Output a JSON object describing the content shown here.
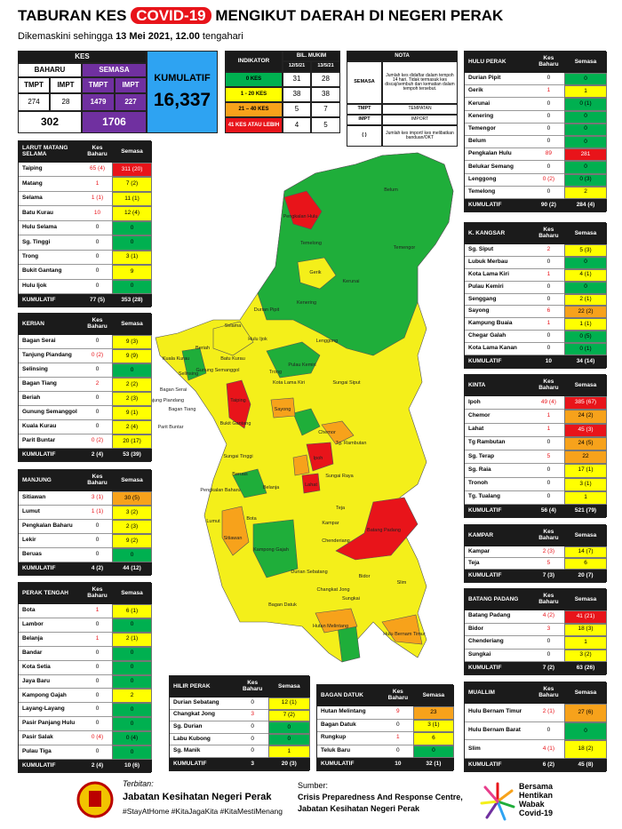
{
  "header": {
    "title_prefix": "TABURAN KES",
    "title_highlight": "COVID-19",
    "title_suffix": "MENGIKUT DAERAH DI NEGERI PERAK",
    "subtitle_prefix": "Dikemaskini sehingga",
    "subtitle_date": "13 Mei 2021, 12.00",
    "subtitle_suffix": "tengahari"
  },
  "summary": {
    "title": "KES",
    "baharu": "BAHARU",
    "semasa": "SEMASA",
    "cols": [
      "TMPT",
      "IMPT",
      "TMPT",
      "IMPT"
    ],
    "values": [
      274,
      28,
      1479,
      227
    ],
    "totals": [
      302,
      1706
    ],
    "kumulatif_label": "KUMULATIF",
    "kumulatif": "16,337"
  },
  "indicator": {
    "title": "INDIKATOR",
    "group": "BIL. MUKIM",
    "dates": [
      "12/5/21",
      "13/5/21"
    ],
    "rows": [
      [
        "0 KES",
        31,
        28,
        "green"
      ],
      [
        "1 - 20 KES",
        38,
        38,
        "yellow"
      ],
      [
        "21 – 40 KES",
        5,
        7,
        "orange"
      ],
      [
        "41 KES ATAU LEBIH",
        4,
        5,
        "red"
      ]
    ]
  },
  "nota": {
    "title": "NOTA",
    "rows": [
      [
        "SEMASA",
        "Jumlah kes didaftar dalam tempoh 14 hari. Tidak termasuk kes discaj/sembuh dan kematian dalam tempoh tersebut."
      ],
      [
        "TMPT",
        "TEMPATAN"
      ],
      [
        "IMPT",
        "IMPORT"
      ],
      [
        "( )",
        "Jumlah kes import/ kes melibatkan banduan/OKT"
      ]
    ]
  },
  "district_columns": [
    "Kes Baharu",
    "Semasa"
  ],
  "total_label": "KUMULATIF",
  "districts": [
    {
      "name": "LARUT MATANG SELAMA",
      "rows": [
        [
          "Taiping",
          "65 (4)",
          "311 (20)",
          "red"
        ],
        [
          "Matang",
          1,
          "7 (2)",
          "yellow"
        ],
        [
          "Selama",
          "1 (1)",
          "11 (1)",
          "yellow"
        ],
        [
          "Batu Kurau",
          10,
          "12 (4)",
          "yellow"
        ],
        [
          "Hulu Selama",
          0,
          0,
          "green"
        ],
        [
          "Sg. Tinggi",
          0,
          0,
          "green"
        ],
        [
          "Trong",
          0,
          "3 (1)",
          "yellow"
        ],
        [
          "Bukit Gantang",
          0,
          9,
          "yellow"
        ],
        [
          "Hulu Ijok",
          0,
          0,
          "green"
        ]
      ],
      "total": [
        "77 (5)",
        "353 (28)"
      ]
    },
    {
      "name": "KERIAN",
      "rows": [
        [
          "Bagan Serai",
          0,
          "9 (3)",
          "yellow"
        ],
        [
          "Tanjung Piandang",
          "0 (2)",
          "9 (9)",
          "yellow"
        ],
        [
          "Selinsing",
          0,
          0,
          "green"
        ],
        [
          "Bagan Tiang",
          2,
          "2 (2)",
          "yellow"
        ],
        [
          "Beriah",
          0,
          "2 (3)",
          "yellow"
        ],
        [
          "Gunung Semanggol",
          0,
          "9 (1)",
          "yellow"
        ],
        [
          "Kuala Kurau",
          0,
          "2 (4)",
          "yellow"
        ],
        [
          "Parit Buntar",
          "0 (2)",
          "20 (17)",
          "yellow"
        ]
      ],
      "total": [
        "2 (4)",
        "53 (39)"
      ]
    },
    {
      "name": "MANJUNG",
      "rows": [
        [
          "Sitiawan",
          "3 (1)",
          "30 (5)",
          "orange"
        ],
        [
          "Lumut",
          "1 (1)",
          "3 (2)",
          "yellow"
        ],
        [
          "Pengkalan Baharu",
          0,
          "2 (3)",
          "yellow"
        ],
        [
          "Lekir",
          0,
          "9 (2)",
          "yellow"
        ],
        [
          "Beruas",
          0,
          0,
          "green"
        ]
      ],
      "total": [
        "4 (2)",
        "44 (12)"
      ]
    },
    {
      "name": "PERAK TENGAH",
      "rows": [
        [
          "Bota",
          1,
          "6 (1)",
          "yellow"
        ],
        [
          "Lambor",
          0,
          0,
          "green"
        ],
        [
          "Belanja",
          1,
          "2 (1)",
          "yellow"
        ],
        [
          "Bandar",
          0,
          0,
          "green"
        ],
        [
          "Kota Setia",
          0,
          0,
          "green"
        ],
        [
          "Jaya Baru",
          0,
          0,
          "green"
        ],
        [
          "Kampong Gajah",
          0,
          2,
          "yellow"
        ],
        [
          "Layang-Layang",
          0,
          0,
          "green"
        ],
        [
          "Pasir Panjang Hulu",
          0,
          0,
          "green"
        ],
        [
          "Pasir Salak",
          "0 (4)",
          "0 (4)",
          "green"
        ],
        [
          "Pulau Tiga",
          0,
          0,
          "green"
        ]
      ],
      "total": [
        "2 (4)",
        "10 (6)"
      ]
    },
    {
      "name": "HILIR PERAK",
      "rows": [
        [
          "Durian Sebatang",
          0,
          "12 (1)",
          "yellow"
        ],
        [
          "Changkat Jong",
          3,
          "7 (2)",
          "yellow"
        ],
        [
          "Sg. Durian",
          0,
          0,
          "green"
        ],
        [
          "Labu Kubong",
          0,
          0,
          "green"
        ],
        [
          "Sg. Manik",
          0,
          1,
          "yellow"
        ]
      ],
      "total": [
        3,
        "20 (3)"
      ]
    },
    {
      "name": "BAGAN DATUK",
      "rows": [
        [
          "Hutan Melintang",
          9,
          23,
          "orange"
        ],
        [
          "Bagan Datuk",
          0,
          "3 (1)",
          "yellow"
        ],
        [
          "Rungkup",
          1,
          6,
          "yellow"
        ],
        [
          "Teluk Baru",
          0,
          0,
          "green"
        ]
      ],
      "total": [
        10,
        "32 (1)"
      ]
    },
    {
      "name": "HULU PERAK",
      "rows": [
        [
          "Durian Pipit",
          0,
          0,
          "green"
        ],
        [
          "Gerik",
          1,
          1,
          "yellow"
        ],
        [
          "Kerunai",
          0,
          "0 (1)",
          "green"
        ],
        [
          "Kenering",
          0,
          0,
          "green"
        ],
        [
          "Temengor",
          0,
          0,
          "green"
        ],
        [
          "Belum",
          0,
          0,
          "green"
        ],
        [
          "Pengkalan Hulu",
          89,
          281,
          "red"
        ],
        [
          "Belukar Semang",
          0,
          0,
          "green"
        ],
        [
          "Lenggong",
          "0 (2)",
          "0 (3)",
          "green"
        ],
        [
          "Temelong",
          0,
          2,
          "yellow"
        ]
      ],
      "total": [
        "90 (2)",
        "284 (4)"
      ]
    },
    {
      "name": "K. KANGSAR",
      "rows": [
        [
          "Sg. Siput",
          2,
          "5 (3)",
          "yellow"
        ],
        [
          "Lubuk Merbau",
          0,
          0,
          "green"
        ],
        [
          "Kota Lama Kiri",
          1,
          "4 (1)",
          "yellow"
        ],
        [
          "Pulau Kemiri",
          0,
          0,
          "green"
        ],
        [
          "Senggang",
          0,
          "2 (1)",
          "yellow"
        ],
        [
          "Sayong",
          6,
          "22 (2)",
          "orange"
        ],
        [
          "Kampung Buaia",
          1,
          "1 (1)",
          "yellow"
        ],
        [
          "Chegar Galah",
          0,
          "0 (5)",
          "green"
        ],
        [
          "Kota Lama Kanan",
          0,
          "0 (1)",
          "green"
        ]
      ],
      "total": [
        10,
        "34 (14)"
      ]
    },
    {
      "name": "KINTA",
      "rows": [
        [
          "Ipoh",
          "49 (4)",
          "385 (67)",
          "red"
        ],
        [
          "Chemor",
          1,
          "24 (2)",
          "orange"
        ],
        [
          "Lahat",
          1,
          "45 (3)",
          "red"
        ],
        [
          "Tg Rambutan",
          0,
          "24 (5)",
          "orange"
        ],
        [
          "Sg. Terap",
          5,
          22,
          "orange"
        ],
        [
          "Sg. Raia",
          0,
          "17 (1)",
          "yellow"
        ],
        [
          "Tronoh",
          0,
          "3 (1)",
          "yellow"
        ],
        [
          "Tg. Tualang",
          0,
          1,
          "yellow"
        ]
      ],
      "total": [
        "56 (4)",
        "521 (79)"
      ]
    },
    {
      "name": "KAMPAR",
      "rows": [
        [
          "Kampar",
          "2 (3)",
          "14 (7)",
          "yellow"
        ],
        [
          "Teja",
          5,
          6,
          "yellow"
        ]
      ],
      "total": [
        "7 (3)",
        "20 (7)"
      ]
    },
    {
      "name": "BATANG PADANG",
      "rows": [
        [
          "Batang Padang",
          "4 (2)",
          "41 (21)",
          "red"
        ],
        [
          "Bidor",
          3,
          "18 (3)",
          "yellow"
        ],
        [
          "Chenderiang",
          0,
          1,
          "yellow"
        ],
        [
          "Sungkai",
          0,
          "3 (2)",
          "yellow"
        ]
      ],
      "total": [
        "7 (2)",
        "63 (26)"
      ]
    },
    {
      "name": "MUALLIM",
      "rows": [
        [
          "Hulu Bernam Timur",
          "2 (1)",
          "27 (6)",
          "orange"
        ],
        [
          "Hulu Bernam Barat",
          0,
          0,
          "green"
        ],
        [
          "Slim",
          "4 (1)",
          "18 (2)",
          "yellow"
        ]
      ],
      "total": [
        "6 (2)",
        "45 (8)"
      ]
    }
  ],
  "map": {
    "labels": [
      "Pengkalan Hulu",
      "Belum",
      "Temelong",
      "Gerik",
      "Temengor",
      "Kerunai",
      "Kenering",
      "Durian Pipit",
      "Selama",
      "Hulu Ijok",
      "Lenggong",
      "Beriah",
      "Batu Kurau",
      "Kuala Kurau",
      "Gunung Semanggol",
      "Selinsing",
      "Bagan Serai",
      "Tanjung Piandang",
      "Bagan Tiang",
      "Parit Buntar",
      "Taiping",
      "Trong",
      "Pulau Kemiri",
      "Kota Lama Kiri",
      "Sungai Siput",
      "Bukit Gantang",
      "Sayong",
      "Sungai Tinggi",
      "Chemor",
      "Tg. Rambutan",
      "Ipoh",
      "Lahat",
      "Sungai Raya",
      "Beruas",
      "Pengkalan Baharu",
      "Belanja",
      "Teja",
      "Lumut",
      "Bota",
      "Sitiawan",
      "Kampar",
      "Chenderiang",
      "Batang Padang",
      "Kampong Gajah",
      "Durian Sebatang",
      "Bidor",
      "Slim",
      "Changkat Jong",
      "Sungkai",
      "Bagan Datuk",
      "Hutan Melintang",
      "Hulu Bernam Timur"
    ]
  },
  "footer": {
    "publisher_label": "Terbitan:",
    "publisher": "Jabatan Kesihatan Negeri Perak",
    "hashtags": "#StayAtHome #KitaJagaKita #KitaMestiMenang",
    "source_label": "Sumber:",
    "source_lines": [
      "Crisis Preparedness And Response Centre,",
      "Jabatan Kesihatan Negeri Perak"
    ],
    "logo_lines": [
      "Bersama",
      "Hentikan",
      "Wabak",
      "Covid-19"
    ]
  }
}
